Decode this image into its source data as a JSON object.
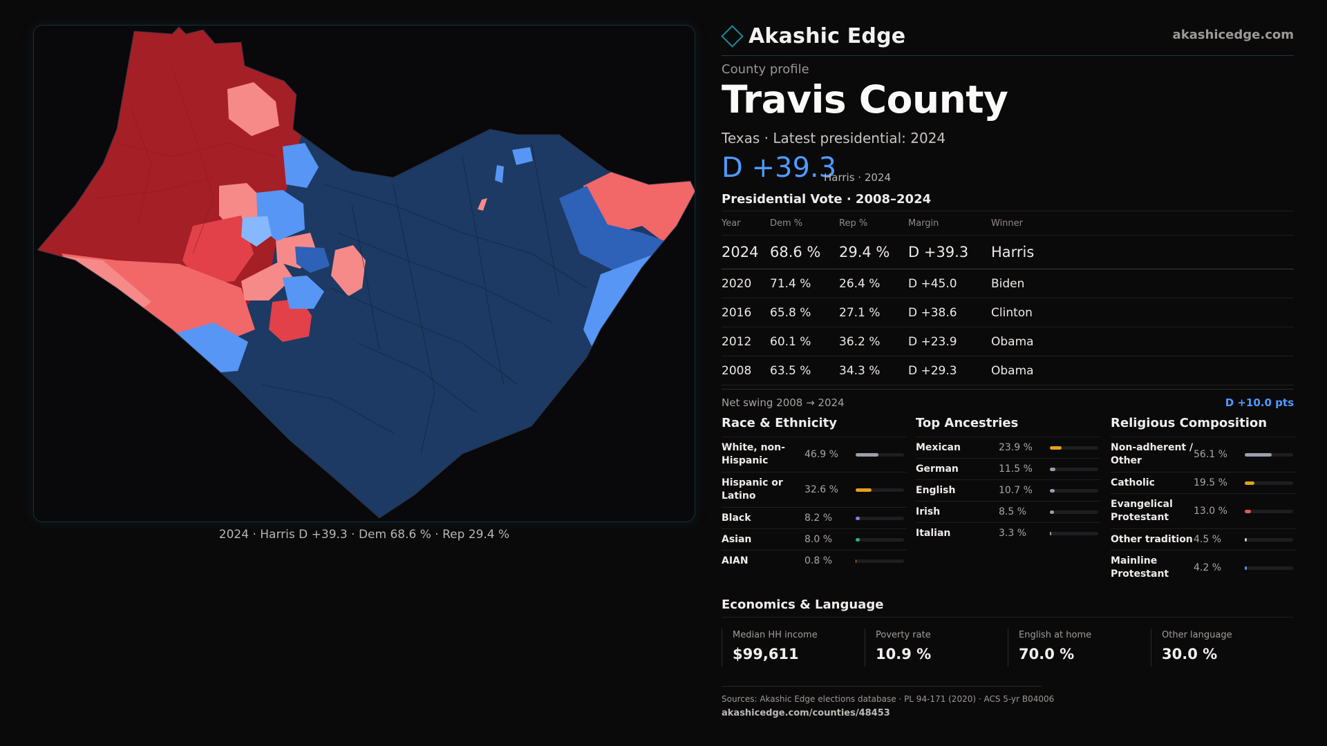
{
  "map": {
    "caption": "2024 · Harris D +39.3 · Dem 68.6 % · Rep 29.4 %",
    "colors": {
      "dem_strong": "#1c3a63",
      "dem_medium": "#2e61b8",
      "dem_light": "#5796f4",
      "dem_pale": "#86b8ff",
      "rep_strong": "#a51f26",
      "rep_medium": "#e2414a",
      "rep_light": "#f26868",
      "rep_pale": "#f68a88"
    }
  },
  "header": {
    "brand": "Akashic Edge",
    "brand_icon": "diamond-outline-icon",
    "site": "akashicedge.com"
  },
  "profile": {
    "kicker": "County profile",
    "title": "Travis County",
    "subtitle": "Texas · Latest presidential: 2024",
    "margin": "D +39.3",
    "margin_note": "Harris · 2024"
  },
  "votes": {
    "title": "Presidential Vote · 2008–2024",
    "columns": [
      "Year",
      "Dem %",
      "Rep %",
      "Margin",
      "Winner"
    ],
    "rows": [
      {
        "year": "2024",
        "dem": "68.6 %",
        "rep": "29.4 %",
        "margin": "D +39.3",
        "winner": "Harris"
      },
      {
        "year": "2020",
        "dem": "71.4 %",
        "rep": "26.4 %",
        "margin": "D +45.0",
        "winner": "Biden"
      },
      {
        "year": "2016",
        "dem": "65.8 %",
        "rep": "27.1 %",
        "margin": "D +38.6",
        "winner": "Clinton"
      },
      {
        "year": "2012",
        "dem": "60.1 %",
        "rep": "36.2 %",
        "margin": "D +23.9",
        "winner": "Obama"
      },
      {
        "year": "2008",
        "dem": "63.5 %",
        "rep": "34.3 %",
        "margin": "D +29.3",
        "winner": "Obama"
      }
    ],
    "swing_label": "Net swing 2008 → 2024",
    "swing_value": "D +10.0 pts"
  },
  "race": {
    "title": "Race & Ethnicity",
    "rows": [
      {
        "label": "White, non-Hispanic",
        "value": "46.9 %",
        "pct": 46.9,
        "color": "#9aa0ab"
      },
      {
        "label": "Hispanic or Latino",
        "value": "32.6 %",
        "pct": 32.6,
        "color": "#e0a21c"
      },
      {
        "label": "Black",
        "value": "8.2 %",
        "pct": 8.2,
        "color": "#8a7ee0"
      },
      {
        "label": "Asian",
        "value": "8.0 %",
        "pct": 8.0,
        "color": "#2bb381"
      },
      {
        "label": "AIAN",
        "value": "0.8 %",
        "pct": 0.8,
        "color": "#e0703a"
      }
    ]
  },
  "ancestry": {
    "title": "Top Ancestries",
    "rows": [
      {
        "label": "Mexican",
        "value": "23.9 %",
        "pct": 23.9,
        "color": "#e0a21c"
      },
      {
        "label": "German",
        "value": "11.5 %",
        "pct": 11.5,
        "color": "#9aa0ab"
      },
      {
        "label": "English",
        "value": "10.7 %",
        "pct": 10.7,
        "color": "#9aa0ab"
      },
      {
        "label": "Irish",
        "value": "8.5 %",
        "pct": 8.5,
        "color": "#9aa0ab"
      },
      {
        "label": "Italian",
        "value": "3.3 %",
        "pct": 3.3,
        "color": "#9aa0ab"
      }
    ]
  },
  "religion": {
    "title": "Religious Composition",
    "rows": [
      {
        "label": "Non-adherent / Other",
        "value": "56.1 %",
        "pct": 56.1,
        "color": "#9aa0ab"
      },
      {
        "label": "Catholic",
        "value": "19.5 %",
        "pct": 19.5,
        "color": "#e0a21c"
      },
      {
        "label": "Evangelical Protestant",
        "value": "13.0 %",
        "pct": 13.0,
        "color": "#e05a5a"
      },
      {
        "label": "Other tradition",
        "value": "4.5 %",
        "pct": 4.5,
        "color": "#c9c6c2"
      },
      {
        "label": "Mainline Protestant",
        "value": "4.2 %",
        "pct": 4.2,
        "color": "#5e8dff"
      }
    ]
  },
  "economics": {
    "title": "Economics & Language",
    "cards": [
      {
        "label": "Median HH income",
        "value": "$99,611"
      },
      {
        "label": "Poverty rate",
        "value": "10.9 %"
      },
      {
        "label": "English at home",
        "value": "70.0 %"
      },
      {
        "label": "Other language",
        "value": "30.0 %"
      }
    ]
  },
  "sources": {
    "text": "Sources: Akashic Edge elections database · PL 94-171 (2020) · ACS 5-yr B04006",
    "url": "akashicedge.com/counties/48453"
  }
}
